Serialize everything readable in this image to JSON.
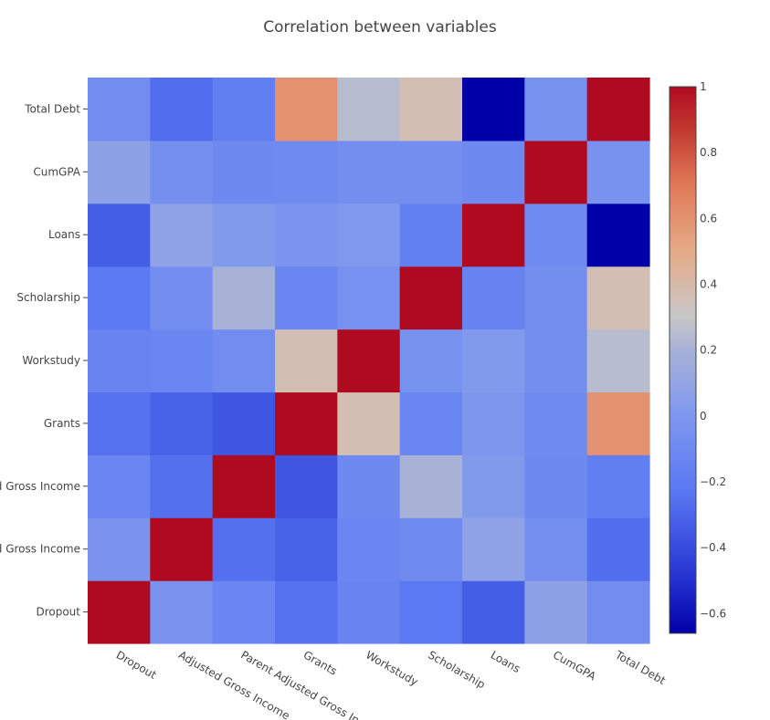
{
  "chart_data": {
    "type": "heatmap",
    "title": "Correlation between variables",
    "x_labels": [
      "Dropout",
      "Adjusted Gross Income",
      "Parent Adjusted Gross Income",
      "Grants",
      "Workstudy",
      "Scholarship",
      "Loans",
      "CumGPA",
      "Total Debt"
    ],
    "y_labels": [
      "Dropout",
      "Adjusted Gross Income",
      "Parent Adjusted Gross Income",
      "Grants",
      "Workstudy",
      "Scholarship",
      "Loans",
      "CumGPA",
      "Total Debt"
    ],
    "values": [
      [
        1.0,
        -0.03,
        -0.13,
        -0.25,
        -0.14,
        -0.22,
        -0.33,
        0.07,
        -0.08
      ],
      [
        -0.03,
        1.0,
        -0.26,
        -0.31,
        -0.13,
        -0.09,
        0.08,
        -0.06,
        -0.27
      ],
      [
        -0.13,
        -0.26,
        1.0,
        -0.36,
        -0.1,
        0.2,
        0.02,
        -0.1,
        -0.18
      ],
      [
        -0.25,
        -0.31,
        -0.36,
        1.0,
        0.37,
        -0.13,
        -0.01,
        -0.09,
        0.6
      ],
      [
        -0.14,
        -0.13,
        -0.08,
        0.37,
        1.0,
        -0.04,
        0.02,
        -0.07,
        0.25
      ],
      [
        -0.22,
        -0.08,
        0.2,
        -0.13,
        -0.05,
        1.0,
        -0.15,
        -0.07,
        0.37
      ],
      [
        -0.33,
        0.08,
        0.02,
        -0.02,
        0.01,
        -0.17,
        1.0,
        -0.09,
        -0.66
      ],
      [
        0.07,
        -0.06,
        -0.1,
        -0.09,
        -0.07,
        -0.07,
        -0.1,
        1.0,
        -0.04
      ],
      [
        -0.08,
        -0.27,
        -0.18,
        0.6,
        0.25,
        0.37,
        -0.66,
        -0.04,
        1.0
      ]
    ],
    "zmin": -0.66,
    "zmax": 1.0,
    "colorscale": "coolwarm",
    "colorbar_ticks": [
      1,
      0.8,
      0.6,
      0.4,
      0.2,
      0,
      -0.2,
      -0.4,
      -0.6
    ],
    "colorbar_tick_labels": [
      "1",
      "0.8",
      "0.6",
      "0.4",
      "0.2",
      "0",
      "−0.2",
      "−0.4",
      "−0.6"
    ]
  }
}
